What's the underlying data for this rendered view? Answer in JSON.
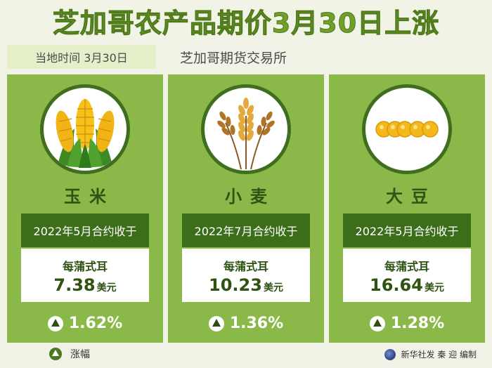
{
  "title": "芝加哥农产品期价3月30日上涨",
  "date_label": "当地时间 3月30日",
  "exchange": "芝加哥期货交易所",
  "products": [
    {
      "icon": "corn-icon",
      "name": "玉米",
      "contract": "2022年5月合约收于",
      "unit": "每蒲式耳",
      "price": "7.38",
      "currency": "美元",
      "change": "1.62%"
    },
    {
      "icon": "wheat-icon",
      "name": "小麦",
      "contract": "2022年7月合约收于",
      "unit": "每蒲式耳",
      "price": "10.23",
      "currency": "美元",
      "change": "1.36%"
    },
    {
      "icon": "soybean-icon",
      "name": "大豆",
      "contract": "2022年5月合约收于",
      "unit": "每蒲式耳",
      "price": "16.64",
      "currency": "美元",
      "change": "1.28%"
    }
  ],
  "legend": "涨幅",
  "credit": "新华社发 秦 迎 编制",
  "colors": {
    "title": "#6fa02a",
    "card": "#8ab94a",
    "dark_green": "#3c6d1a",
    "date_bg": "#e5efc9"
  }
}
